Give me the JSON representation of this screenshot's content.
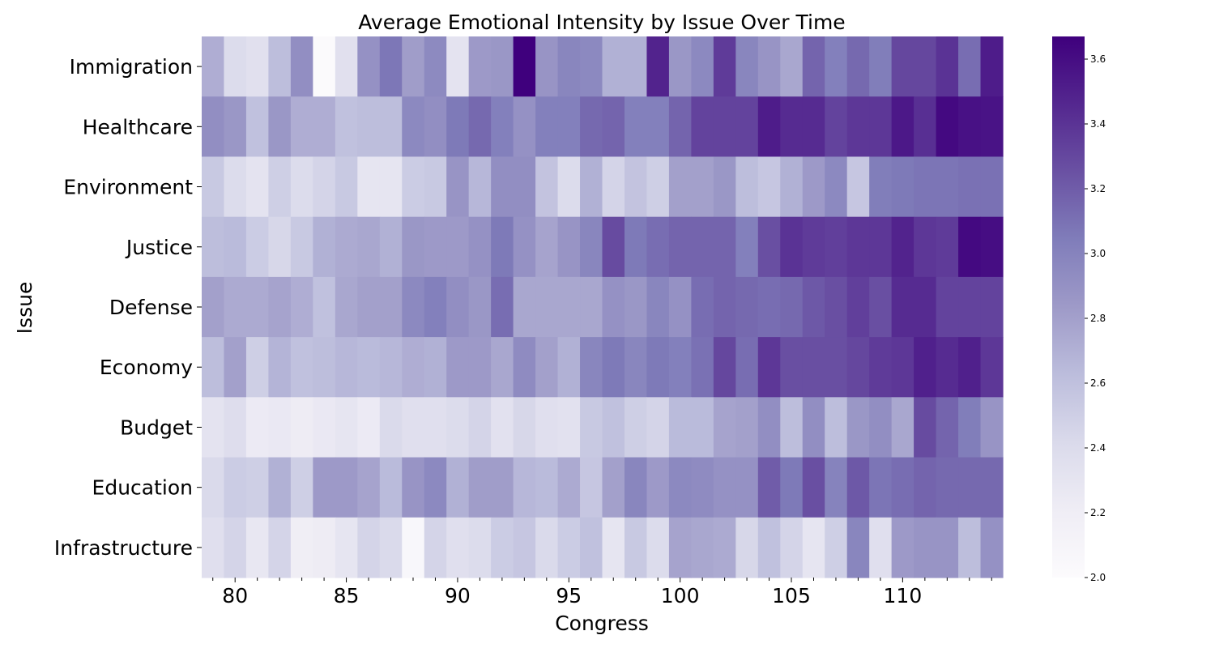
{
  "chart_data": {
    "type": "heatmap",
    "title": "Average Emotional Intensity by Issue Over Time",
    "xlabel": "Congress",
    "ylabel": "Issue",
    "x_start": 79,
    "x_end": 114,
    "x_tick_labels": [
      "80",
      "85",
      "90",
      "95",
      "100",
      "105",
      "110"
    ],
    "rows": [
      "Immigration",
      "Healthcare",
      "Environment",
      "Justice",
      "Defense",
      "Economy",
      "Budget",
      "Education",
      "Infrastructure"
    ],
    "colorbar": {
      "min": 2.0,
      "max": 3.67,
      "ticks": [
        "2.0",
        "2.2",
        "2.4",
        "2.6",
        "2.8",
        "3.0",
        "3.2",
        "3.4",
        "3.6"
      ],
      "colormap": "Purples"
    },
    "values": [
      [
        2.72,
        2.4,
        2.35,
        2.62,
        2.92,
        2.02,
        2.35,
        2.9,
        3.07,
        2.82,
        2.95,
        2.32,
        2.84,
        2.86,
        3.67,
        2.88,
        2.98,
        2.96,
        2.7,
        2.7,
        3.48,
        2.86,
        2.96,
        3.36,
        2.98,
        2.88,
        2.76,
        3.16,
        3.02,
        3.14,
        3.04,
        3.3,
        3.3,
        3.4,
        3.12,
        3.52
      ],
      [
        2.92,
        2.86,
        2.6,
        2.86,
        2.72,
        2.72,
        2.6,
        2.62,
        2.62,
        2.96,
        2.92,
        3.06,
        3.14,
        3.02,
        2.9,
        3.02,
        3.02,
        3.14,
        3.16,
        3.02,
        3.02,
        3.16,
        3.32,
        3.32,
        3.32,
        3.52,
        3.44,
        3.44,
        3.32,
        3.38,
        3.38,
        3.54,
        3.42,
        3.62,
        3.58,
        3.57
      ],
      [
        2.54,
        2.4,
        2.32,
        2.5,
        2.4,
        2.46,
        2.54,
        2.3,
        2.3,
        2.52,
        2.54,
        2.88,
        2.66,
        2.92,
        2.92,
        2.58,
        2.4,
        2.7,
        2.46,
        2.58,
        2.5,
        2.8,
        2.8,
        2.86,
        2.62,
        2.56,
        2.7,
        2.84,
        2.96,
        2.56,
        3.04,
        3.06,
        3.08,
        3.08,
        3.1,
        3.1
      ],
      [
        2.62,
        2.64,
        2.52,
        2.44,
        2.54,
        2.7,
        2.74,
        2.76,
        2.7,
        2.86,
        2.84,
        2.84,
        2.9,
        3.06,
        2.9,
        2.78,
        2.88,
        2.98,
        3.28,
        3.06,
        3.12,
        3.16,
        3.16,
        3.16,
        3.02,
        3.26,
        3.4,
        3.36,
        3.34,
        3.38,
        3.38,
        3.48,
        3.38,
        3.36,
        3.62,
        3.6
      ],
      [
        2.8,
        2.74,
        2.74,
        2.78,
        2.72,
        2.6,
        2.76,
        2.8,
        2.8,
        2.96,
        3.02,
        2.92,
        2.86,
        3.12,
        2.76,
        2.76,
        2.76,
        2.76,
        2.9,
        2.86,
        2.98,
        2.9,
        3.12,
        3.16,
        3.14,
        3.12,
        3.14,
        3.22,
        3.26,
        3.34,
        3.26,
        3.44,
        3.44,
        3.32,
        3.32,
        3.32
      ],
      [
        2.62,
        2.8,
        2.5,
        2.68,
        2.6,
        2.62,
        2.66,
        2.64,
        2.66,
        2.72,
        2.7,
        2.84,
        2.84,
        2.76,
        2.94,
        2.8,
        2.7,
        2.98,
        3.06,
        2.98,
        3.06,
        3.02,
        3.1,
        3.3,
        3.12,
        3.38,
        3.26,
        3.26,
        3.26,
        3.3,
        3.36,
        3.38,
        3.5,
        3.44,
        3.5,
        3.38
      ],
      [
        2.32,
        2.38,
        2.24,
        2.26,
        2.22,
        2.26,
        2.3,
        2.24,
        2.42,
        2.36,
        2.36,
        2.4,
        2.46,
        2.34,
        2.44,
        2.36,
        2.34,
        2.54,
        2.6,
        2.5,
        2.46,
        2.64,
        2.64,
        2.78,
        2.8,
        2.92,
        2.62,
        2.92,
        2.62,
        2.86,
        2.92,
        2.76,
        3.28,
        3.16,
        3.04,
        2.88
      ],
      [
        2.42,
        2.52,
        2.5,
        2.7,
        2.5,
        2.84,
        2.84,
        2.78,
        2.64,
        2.88,
        2.96,
        2.7,
        2.82,
        2.82,
        2.66,
        2.64,
        2.74,
        2.56,
        2.8,
        2.98,
        2.84,
        2.96,
        2.94,
        2.9,
        2.9,
        3.2,
        3.06,
        3.26,
        3.0,
        3.22,
        3.08,
        3.12,
        3.16,
        3.14,
        3.14,
        3.14
      ],
      [
        2.36,
        2.46,
        2.28,
        2.46,
        2.2,
        2.22,
        2.3,
        2.46,
        2.42,
        2.06,
        2.46,
        2.36,
        2.4,
        2.52,
        2.56,
        2.42,
        2.52,
        2.6,
        2.3,
        2.54,
        2.4,
        2.78,
        2.76,
        2.74,
        2.44,
        2.6,
        2.46,
        2.3,
        2.5,
        2.98,
        2.36,
        2.84,
        2.88,
        2.88,
        2.62,
        2.9
      ]
    ]
  }
}
